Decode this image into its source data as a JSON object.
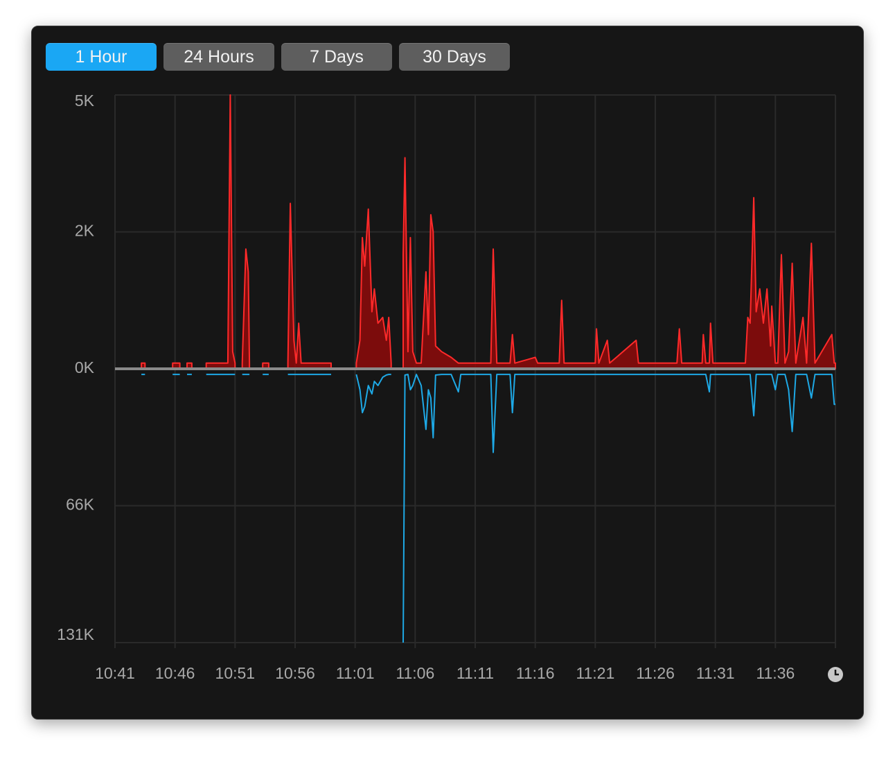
{
  "buttons": [
    {
      "label": "1 Hour",
      "selected": true
    },
    {
      "label": "24 Hours",
      "selected": false
    },
    {
      "label": "7 Days",
      "selected": false
    },
    {
      "label": "30 Days",
      "selected": false
    }
  ],
  "chart_data": {
    "type": "line",
    "grid": true,
    "y2_direction": "down",
    "xlim": [
      641,
      701
    ],
    "xticks": [
      {
        "value": 641,
        "label": "10:41"
      },
      {
        "value": 646,
        "label": "10:46"
      },
      {
        "value": 651,
        "label": "10:51"
      },
      {
        "value": 656,
        "label": "10:56"
      },
      {
        "value": 661,
        "label": "11:01"
      },
      {
        "value": 666,
        "label": "11:06"
      },
      {
        "value": 671,
        "label": "11:11"
      },
      {
        "value": 676,
        "label": "11:16"
      },
      {
        "value": 681,
        "label": "11:21"
      },
      {
        "value": 686,
        "label": "11:26"
      },
      {
        "value": 691,
        "label": "11:31"
      },
      {
        "value": 696,
        "label": "11:36"
      }
    ],
    "ylim": [
      0,
      4.8
    ],
    "yticks": [
      {
        "value": 0,
        "label": "0K"
      },
      {
        "value": 2.4,
        "label": "2K"
      },
      {
        "value": 4.8,
        "label": "5K"
      }
    ],
    "y2lim": [
      0,
      131
    ],
    "y2ticks": [
      {
        "value": 65.5,
        "label": "66K"
      },
      {
        "value": 131,
        "label": "131K"
      }
    ],
    "x": [
      643.2,
      643.5,
      null,
      645.8,
      646.4,
      null,
      647.0,
      647.4,
      null,
      648.6,
      650.4,
      650.6,
      650.8,
      651.0,
      null,
      651.6,
      651.9,
      652.1,
      652.2,
      null,
      653.3,
      653.8,
      null,
      655.4,
      655.6,
      655.9,
      656.1,
      656.3,
      656.5,
      659.0,
      null,
      661.1,
      661.4,
      661.6,
      661.8,
      662.1,
      662.4,
      662.6,
      662.9,
      663.3,
      663.6,
      663.8,
      664.0,
      null,
      665.0,
      665.15,
      665.4,
      665.6,
      665.8,
      666.1,
      666.5,
      666.9,
      667.1,
      667.3,
      667.5,
      667.7,
      668.2,
      669.0,
      669.6,
      669.8,
      672.3,
      672.5,
      672.8,
      673.9,
      674.1,
      674.3,
      676.0,
      676.2,
      678.0,
      678.2,
      678.4,
      681.0,
      681.1,
      681.3,
      682.0,
      682.2,
      684.4,
      684.6,
      687.8,
      688.0,
      688.2,
      689.9,
      690.0,
      690.2,
      690.5,
      690.6,
      690.8,
      693.5,
      693.7,
      693.9,
      694.2,
      694.4,
      694.7,
      695.0,
      695.3,
      695.6,
      695.7,
      696.0,
      696.2,
      696.5,
      696.8,
      697.1,
      697.4,
      697.7,
      698.3,
      698.6,
      699.0,
      699.3,
      700.7,
      700.9,
      701.0
    ],
    "series": [
      {
        "color": "#ff2a2a",
        "fill": "#8e0a0a",
        "values": [
          0.1,
          0.1,
          null,
          0.1,
          0.1,
          null,
          0.1,
          0.1,
          null,
          0.1,
          0.1,
          4.8,
          0.3,
          0.1,
          null,
          0.1,
          2.1,
          1.7,
          0.1,
          null,
          0.1,
          0.1,
          null,
          0.1,
          2.9,
          0.5,
          0.1,
          0.8,
          0.1,
          0.1,
          null,
          0.1,
          0.5,
          2.3,
          1.8,
          2.8,
          1.0,
          1.4,
          0.8,
          0.9,
          0.5,
          0.9,
          0.1,
          null,
          2.0,
          3.7,
          0.3,
          2.3,
          0.3,
          0.1,
          0.1,
          1.7,
          0.6,
          2.7,
          2.4,
          0.4,
          0.3,
          0.2,
          0.1,
          0.1,
          0.1,
          2.1,
          0.1,
          0.1,
          0.6,
          0.1,
          0.2,
          0.1,
          0.1,
          1.2,
          0.1,
          0.1,
          0.7,
          0.1,
          0.5,
          0.1,
          0.5,
          0.1,
          0.1,
          0.7,
          0.1,
          0.1,
          0.6,
          0.1,
          0.1,
          0.8,
          0.1,
          0.1,
          0.9,
          0.8,
          3.0,
          1.0,
          1.4,
          0.8,
          1.4,
          0.4,
          1.1,
          0.1,
          0.1,
          2.0,
          0.1,
          0.3,
          1.85,
          0.1,
          0.9,
          0.1,
          2.2,
          0.1,
          0.6,
          0.1,
          0.1
        ]
      },
      {
        "color": "#1ea9e6",
        "axis": "y2",
        "values": [
          2.7,
          2.7,
          null,
          2.7,
          2.7,
          null,
          2.7,
          2.7,
          null,
          2.7,
          2.7,
          2.7,
          2.7,
          2.7,
          null,
          2.7,
          2.7,
          2.7,
          2.7,
          null,
          2.7,
          2.7,
          null,
          2.7,
          2.7,
          2.7,
          2.7,
          2.7,
          2.7,
          2.7,
          null,
          2.7,
          10,
          21,
          18,
          8,
          12,
          6,
          8,
          4,
          3,
          2.7,
          2.7,
          null,
          131,
          3,
          2.7,
          10,
          8,
          2.7,
          8,
          29,
          10,
          14,
          33,
          3,
          2.7,
          2.7,
          11,
          2.7,
          2.7,
          40,
          2.7,
          2.7,
          21,
          2.7,
          2.7,
          2.7,
          2.7,
          2.7,
          2.7,
          2.7,
          2.7,
          2.7,
          2.7,
          2.7,
          2.7,
          2.7,
          2.7,
          2.7,
          2.7,
          2.7,
          2.7,
          2.7,
          11,
          2.7,
          2.7,
          2.7,
          2.7,
          2.7,
          22.5,
          2.7,
          2.7,
          2.7,
          2.7,
          2.7,
          2.7,
          10,
          2.7,
          2.7,
          2.7,
          10,
          30,
          2.7,
          2.7,
          2.7,
          14,
          2.7,
          2.7,
          17,
          17
        ]
      }
    ]
  }
}
